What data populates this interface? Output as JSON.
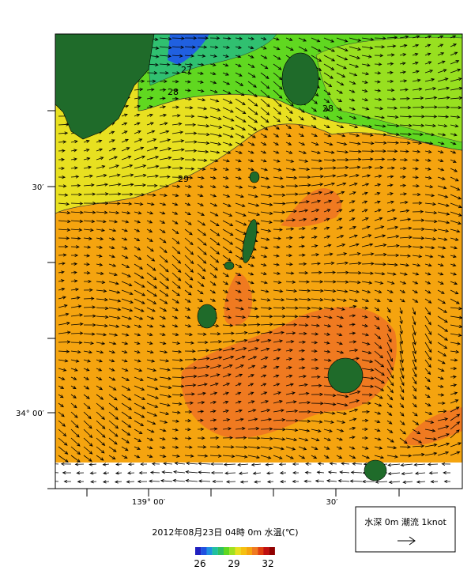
{
  "map": {
    "axis_labels": {
      "lat": [
        "30′",
        "34° 00′"
      ],
      "lon": [
        "139° 00′",
        "30′"
      ]
    },
    "contour_labels": [
      "27",
      "28",
      "28",
      "29"
    ],
    "caption": "2012年08月23日 04時 0m 水温(℃)",
    "colorbar": {
      "labels": [
        "26",
        "29",
        "32"
      ]
    },
    "legend": {
      "label": "水深 0m 潮流 1knot"
    }
  }
}
